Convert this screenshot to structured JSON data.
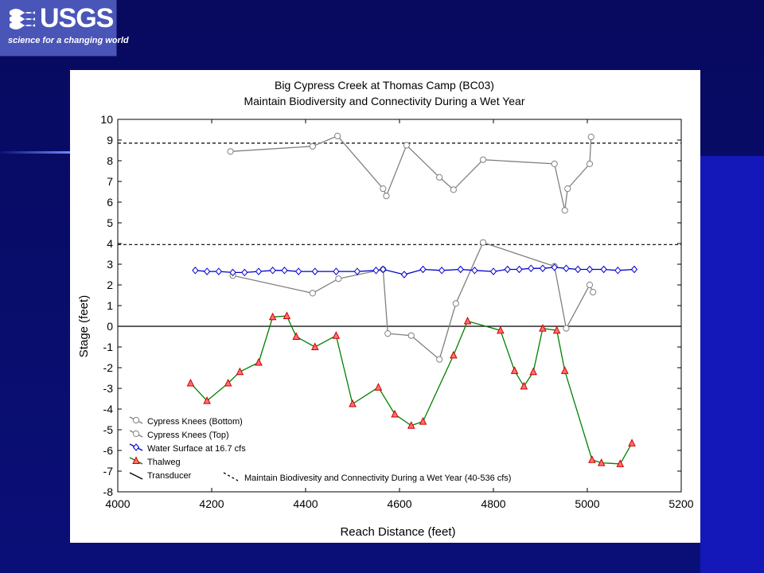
{
  "logo": {
    "text": "USGS",
    "tagline": "science for a changing world"
  },
  "chart_data": {
    "type": "line",
    "title": "Big Cypress Creek at Thomas Camp (BC03)",
    "subtitle": "Maintain Biodiversity and Connectivity During a Wet Year",
    "xlabel": "Reach Distance (feet)",
    "ylabel": "Stage (feet)",
    "xlim": [
      4000,
      5200
    ],
    "ylim": [
      -8,
      10
    ],
    "xticks": [
      4000,
      4200,
      4400,
      4600,
      4800,
      5000,
      5200
    ],
    "yticks": [
      -8,
      -7,
      -6,
      -5,
      -4,
      -3,
      -2,
      -1,
      0,
      1,
      2,
      3,
      4,
      5,
      6,
      7,
      8,
      9,
      10
    ],
    "grid": false,
    "legend_position": "bottom-left",
    "series": [
      {
        "name": "Cypress Knees (Bottom)",
        "color": "#808080",
        "marker": "circle",
        "points": [
          [
            4245,
            2.45
          ],
          [
            4415,
            1.6
          ],
          [
            4470,
            2.3
          ],
          [
            4565,
            2.75
          ],
          [
            4575,
            -0.35
          ],
          [
            4625,
            -0.45
          ],
          [
            4685,
            -1.6
          ],
          [
            4720,
            1.1
          ],
          [
            4778,
            4.05
          ],
          [
            4930,
            2.9
          ],
          [
            4955,
            -0.1
          ],
          [
            5005,
            2.0
          ],
          [
            5012,
            1.65
          ]
        ]
      },
      {
        "name": "Cypress Knees (Top)",
        "color": "#808080",
        "marker": "circle",
        "points": [
          [
            4240,
            8.45
          ],
          [
            4415,
            8.7
          ],
          [
            4468,
            9.2
          ],
          [
            4565,
            6.65
          ],
          [
            4572,
            6.3
          ],
          [
            4615,
            8.75
          ],
          [
            4685,
            7.2
          ],
          [
            4715,
            6.6
          ],
          [
            4778,
            8.05
          ],
          [
            4930,
            7.85
          ],
          [
            4952,
            5.6
          ],
          [
            4958,
            6.65
          ],
          [
            5005,
            7.85
          ],
          [
            5008,
            9.15
          ]
        ]
      },
      {
        "name": "Water Surface at 16.7 cfs",
        "color": "#0000cc",
        "marker": "diamond",
        "points": [
          [
            4165,
            2.7
          ],
          [
            4190,
            2.65
          ],
          [
            4215,
            2.65
          ],
          [
            4245,
            2.6
          ],
          [
            4270,
            2.6
          ],
          [
            4300,
            2.65
          ],
          [
            4330,
            2.7
          ],
          [
            4355,
            2.7
          ],
          [
            4385,
            2.65
          ],
          [
            4420,
            2.65
          ],
          [
            4465,
            2.65
          ],
          [
            4510,
            2.65
          ],
          [
            4550,
            2.7
          ],
          [
            4565,
            2.75
          ],
          [
            4610,
            2.5
          ],
          [
            4650,
            2.75
          ],
          [
            4690,
            2.7
          ],
          [
            4730,
            2.75
          ],
          [
            4760,
            2.7
          ],
          [
            4800,
            2.65
          ],
          [
            4830,
            2.75
          ],
          [
            4855,
            2.75
          ],
          [
            4880,
            2.8
          ],
          [
            4905,
            2.8
          ],
          [
            4930,
            2.85
          ],
          [
            4955,
            2.8
          ],
          [
            4980,
            2.75
          ],
          [
            5005,
            2.75
          ],
          [
            5035,
            2.75
          ],
          [
            5065,
            2.7
          ],
          [
            5100,
            2.75
          ]
        ]
      },
      {
        "name": "Thalweg",
        "color": "#008000",
        "marker": "triangle",
        "points": [
          [
            4155,
            -2.75
          ],
          [
            4190,
            -3.6
          ],
          [
            4235,
            -2.75
          ],
          [
            4260,
            -2.2
          ],
          [
            4300,
            -1.75
          ],
          [
            4330,
            0.45
          ],
          [
            4360,
            0.5
          ],
          [
            4380,
            -0.5
          ],
          [
            4420,
            -1.0
          ],
          [
            4465,
            -0.45
          ],
          [
            4500,
            -3.75
          ],
          [
            4555,
            -2.95
          ],
          [
            4590,
            -4.25
          ],
          [
            4625,
            -4.8
          ],
          [
            4650,
            -4.6
          ],
          [
            4715,
            -1.4
          ],
          [
            4745,
            0.25
          ],
          [
            4815,
            -0.2
          ],
          [
            4845,
            -2.15
          ],
          [
            4865,
            -2.9
          ],
          [
            4885,
            -2.2
          ],
          [
            4905,
            -0.1
          ],
          [
            4935,
            -0.2
          ],
          [
            4952,
            -2.15
          ],
          [
            5010,
            -6.45
          ],
          [
            5030,
            -6.6
          ],
          [
            5070,
            -6.65
          ],
          [
            5095,
            -5.65
          ]
        ]
      }
    ],
    "reference_lines": [
      {
        "name": "Transducer",
        "style": "solid",
        "y": 0
      },
      {
        "name": "Maintain Biodivesity and Connectivity During a Wet Year (40-536 cfs)",
        "style": "dashed",
        "y": [
          3.95,
          8.85
        ]
      }
    ]
  }
}
